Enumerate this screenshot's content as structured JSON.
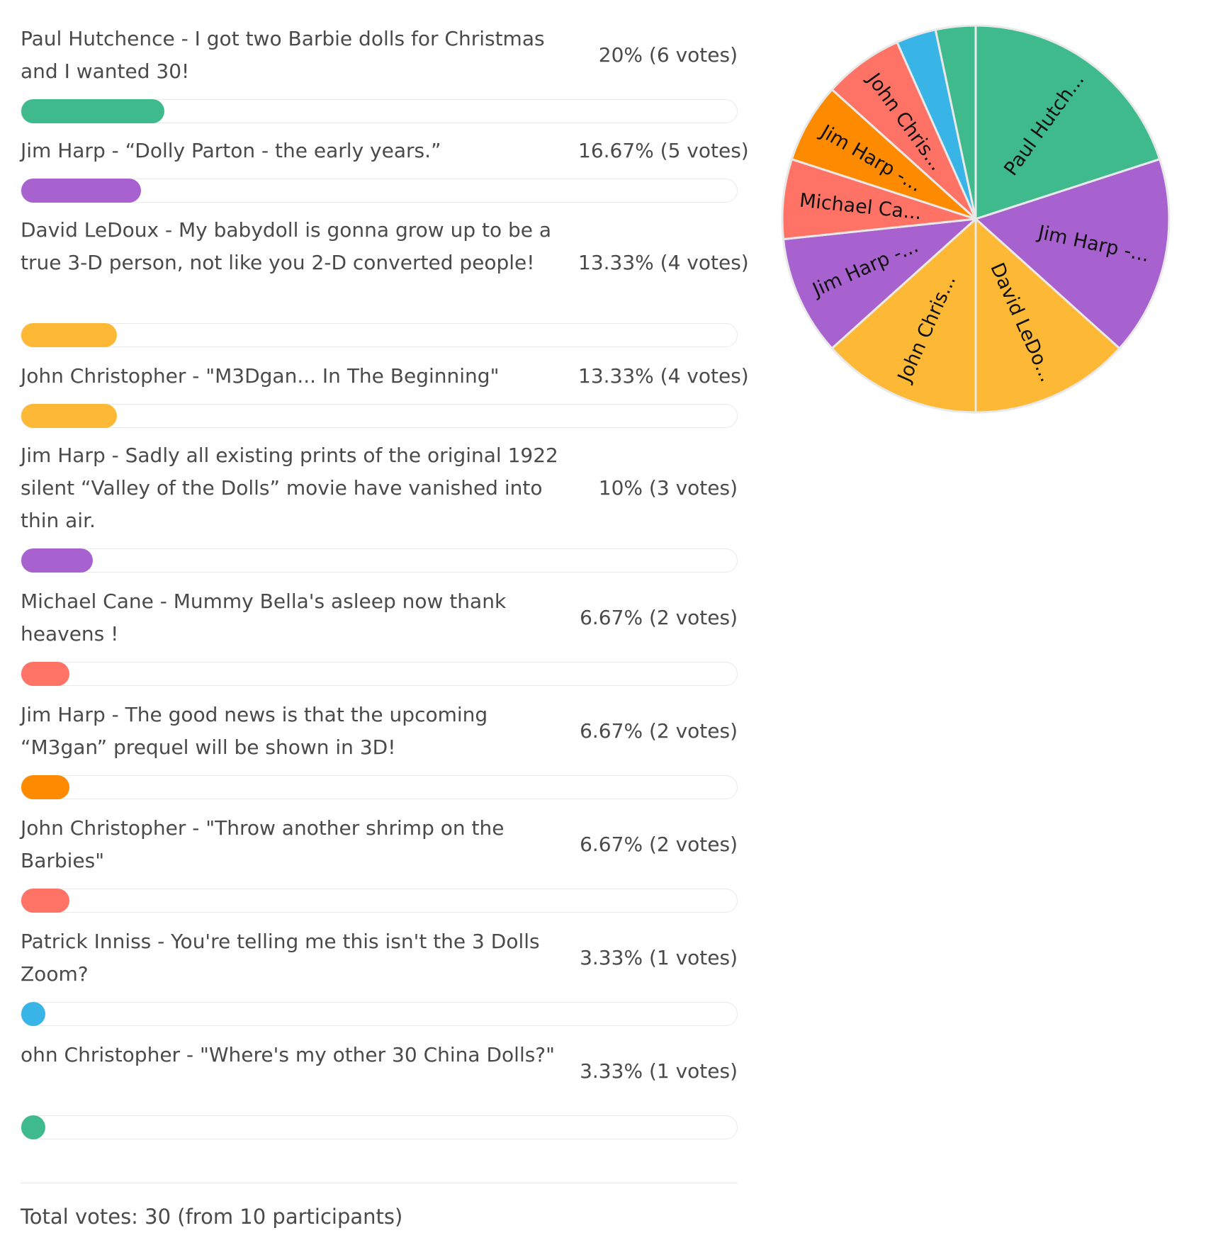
{
  "chart_data": {
    "type": "bar",
    "orientation": "horizontal",
    "options": [
      {
        "label": "Paul Hutchence - I got two Barbie dolls for Christmas and I wanted 30!",
        "percent_text": "20% (6 votes)",
        "percent": 20,
        "votes": 6,
        "color": "#3fba8d",
        "pie_label": "Paul Hutch..."
      },
      {
        "label": "Jim Harp - “Dolly Parton - the early years.”",
        "percent_text": "16.67% (5 votes)",
        "percent": 16.67,
        "votes": 5,
        "color": "#a762d0",
        "pie_label": "Jim Harp -..."
      },
      {
        "label": "David LeDoux - My babydoll is gonna grow up to be a true 3-D person, not like you 2-D converted people!",
        "percent_text": "13.33% (4 votes)",
        "percent": 13.33,
        "votes": 4,
        "color": "#fdb935",
        "pie_label": "David LeDo..."
      },
      {
        "label": "John Christopher - \"M3Dgan... In The Beginning\"",
        "percent_text": "13.33% (4 votes)",
        "percent": 13.33,
        "votes": 4,
        "color": "#fdb935",
        "pie_label": "John Chris..."
      },
      {
        "label": "Jim Harp - Sadly all existing prints of the original 1922 silent “Valley of the Dolls” movie have vanished into thin air.",
        "percent_text": "10% (3 votes)",
        "percent": 10,
        "votes": 3,
        "color": "#a762d0",
        "pie_label": "Jim Harp -..."
      },
      {
        "label": "Michael Cane - Mummy Bella's asleep now thank heavens !",
        "percent_text": "6.67% (2 votes)",
        "percent": 6.67,
        "votes": 2,
        "color": "#fe7366",
        "pie_label": "Michael Ca..."
      },
      {
        "label": "Jim Harp - The good news is that the upcoming “M3gan” prequel will be shown in 3D!",
        "percent_text": "6.67% (2 votes)",
        "percent": 6.67,
        "votes": 2,
        "color": "#fe8a00",
        "pie_label": "Jim Harp -..."
      },
      {
        "label": "John Christopher - \"Throw another shrimp on the Barbies\"",
        "percent_text": "6.67% (2 votes)",
        "percent": 6.67,
        "votes": 2,
        "color": "#fe7366",
        "pie_label": "John Chris..."
      },
      {
        "label": "Patrick Inniss - You're telling me this isn't the 3 Dolls Zoom?",
        "percent_text": "3.33% (1 votes)",
        "percent": 3.33,
        "votes": 1,
        "color": "#38b5e6",
        "pie_label": ""
      },
      {
        "label": "ohn Christopher - \"Where's my other 30 China Dolls?\"",
        "percent_text": "3.33% (1 votes)",
        "percent": 3.33,
        "votes": 1,
        "color": "#3fba8d",
        "pie_label": ""
      }
    ],
    "total_text": "Total votes: 30 (from 10 participants)",
    "pie_type": "pie"
  }
}
